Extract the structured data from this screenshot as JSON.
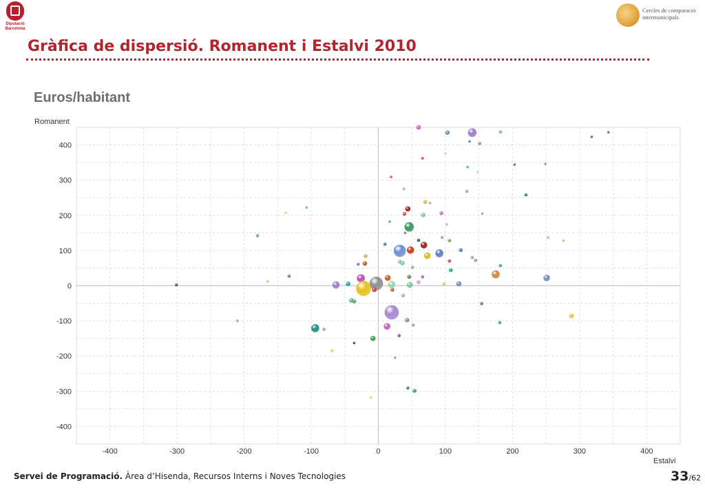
{
  "header": {
    "logo_left_text": "Diputació\nBarcelona",
    "logo_right_text": "Cercles de comparació intermunicipals",
    "title": "Gràfica de dispersió. Romanent i Estalvi 2010",
    "accent_color": "#b2242e"
  },
  "subtitle": "Euros/habitant",
  "chart_data": {
    "type": "scatter",
    "title": "",
    "xlabel": "Estalvi",
    "ylabel": "Romanent",
    "xlim": [
      -450,
      450
    ],
    "ylim": [
      -450,
      450
    ],
    "xticks": [
      -400,
      -300,
      -200,
      -100,
      0,
      100,
      200,
      300,
      400
    ],
    "yticks": [
      -400,
      -300,
      -200,
      -100,
      0,
      100,
      200,
      300,
      400
    ],
    "grid": true,
    "legend": "none",
    "points": [
      {
        "x": 60,
        "y": 450,
        "r": 3,
        "color": "#d05ec0"
      },
      {
        "x": 103,
        "y": 435,
        "r": 3,
        "color": "#6a8fc8"
      },
      {
        "x": 140,
        "y": 435,
        "r": 6,
        "color": "#9b7fc8"
      },
      {
        "x": 182,
        "y": 437,
        "r": 2,
        "color": "#68b8a8"
      },
      {
        "x": 343,
        "y": 436,
        "r": 1.5,
        "color": "#7b5fa8"
      },
      {
        "x": 318,
        "y": 423,
        "r": 1.5,
        "color": "#a05050"
      },
      {
        "x": 136,
        "y": 410,
        "r": 1.5,
        "color": "#5b7fd0"
      },
      {
        "x": 151,
        "y": 404,
        "r": 2,
        "color": "#6a8fc8"
      },
      {
        "x": 100,
        "y": 376,
        "r": 1.5,
        "color": "#cccccc"
      },
      {
        "x": 66,
        "y": 362,
        "r": 1.5,
        "color": "#c84040"
      },
      {
        "x": 203,
        "y": 344,
        "r": 1.5,
        "color": "#a05060"
      },
      {
        "x": 249,
        "y": 346,
        "r": 1.5,
        "color": "#d08090"
      },
      {
        "x": 133,
        "y": 337,
        "r": 1.5,
        "color": "#4aa0d0"
      },
      {
        "x": 148,
        "y": 323,
        "r": 1.5,
        "color": "#cccccc"
      },
      {
        "x": 19,
        "y": 309,
        "r": 1.5,
        "color": "#d05050"
      },
      {
        "x": 38,
        "y": 275,
        "r": 2,
        "color": "#a0c8b0"
      },
      {
        "x": 132,
        "y": 268,
        "r": 2,
        "color": "#a0a0a0"
      },
      {
        "x": 220,
        "y": 258,
        "r": 2,
        "color": "#3a8040"
      },
      {
        "x": 70,
        "y": 238,
        "r": 2.5,
        "color": "#e0b040"
      },
      {
        "x": 77,
        "y": 235,
        "r": 1.5,
        "color": "#a0a0a0"
      },
      {
        "x": -107,
        "y": 222,
        "r": 1.5,
        "color": "#68c0a8"
      },
      {
        "x": -138,
        "y": 207,
        "r": 1.5,
        "color": "#e0d080"
      },
      {
        "x": 44,
        "y": 218,
        "r": 3.5,
        "color": "#a02020"
      },
      {
        "x": 39,
        "y": 204,
        "r": 2.5,
        "color": "#d05050"
      },
      {
        "x": 67,
        "y": 201,
        "r": 3,
        "color": "#80c8a0"
      },
      {
        "x": 94,
        "y": 206,
        "r": 2.5,
        "color": "#d070c0"
      },
      {
        "x": 155,
        "y": 205,
        "r": 1.5,
        "color": "#a0a0a0"
      },
      {
        "x": 17,
        "y": 182,
        "r": 1.5,
        "color": "#50a0c0"
      },
      {
        "x": 46,
        "y": 167,
        "r": 6.5,
        "color": "#3a9860"
      },
      {
        "x": 102,
        "y": 174,
        "r": 1.5,
        "color": "#a0c8a0"
      },
      {
        "x": 40,
        "y": 150,
        "r": 1.5,
        "color": "#6080c0"
      },
      {
        "x": -180,
        "y": 142,
        "r": 2,
        "color": "#68a898"
      },
      {
        "x": 253,
        "y": 137,
        "r": 2,
        "color": "#a8c8e0"
      },
      {
        "x": 276,
        "y": 128,
        "r": 1.5,
        "color": "#d0c050"
      },
      {
        "x": 95,
        "y": 137,
        "r": 2,
        "color": "#c090d0"
      },
      {
        "x": 106,
        "y": 128,
        "r": 2,
        "color": "#80a040"
      },
      {
        "x": 60,
        "y": 129,
        "r": 2,
        "color": "#205080"
      },
      {
        "x": 68,
        "y": 115,
        "r": 4.5,
        "color": "#a02020"
      },
      {
        "x": 48,
        "y": 101,
        "r": 5,
        "color": "#c04020"
      },
      {
        "x": 32,
        "y": 99,
        "r": 8.5,
        "color": "#7090d0"
      },
      {
        "x": 10,
        "y": 118,
        "r": 2,
        "color": "#3a8090"
      },
      {
        "x": 123,
        "y": 101,
        "r": 2.5,
        "color": "#5080c0"
      },
      {
        "x": 91,
        "y": 92,
        "r": 5.5,
        "color": "#6080c0"
      },
      {
        "x": 73,
        "y": 85,
        "r": 4.5,
        "color": "#e0b830"
      },
      {
        "x": 140,
        "y": 80,
        "r": 2,
        "color": "#a0a0a0"
      },
      {
        "x": 145,
        "y": 72,
        "r": 2,
        "color": "#b080c0"
      },
      {
        "x": 106,
        "y": 70,
        "r": 2,
        "color": "#d04040"
      },
      {
        "x": 182,
        "y": 57,
        "r": 2,
        "color": "#30a0a0"
      },
      {
        "x": -19,
        "y": 84,
        "r": 2.5,
        "color": "#d0b040"
      },
      {
        "x": -20,
        "y": 63,
        "r": 3,
        "color": "#c06020"
      },
      {
        "x": -30,
        "y": 61,
        "r": 2,
        "color": "#8080c0"
      },
      {
        "x": 32,
        "y": 68,
        "r": 2.5,
        "color": "#a0c090"
      },
      {
        "x": 36,
        "y": 64,
        "r": 3,
        "color": "#80c0c0"
      },
      {
        "x": 51,
        "y": 52,
        "r": 2,
        "color": "#a0a0a0"
      },
      {
        "x": 108,
        "y": 44,
        "r": 2.5,
        "color": "#30a080"
      },
      {
        "x": 175,
        "y": 32,
        "r": 5.5,
        "color": "#d08840"
      },
      {
        "x": 251,
        "y": 22,
        "r": 4.5,
        "color": "#7090c0"
      },
      {
        "x": -26,
        "y": 21,
        "r": 5.5,
        "color": "#c050b0"
      },
      {
        "x": 14,
        "y": 22,
        "r": 4,
        "color": "#c06020"
      },
      {
        "x": 46,
        "y": 25,
        "r": 2.5,
        "color": "#6a8040"
      },
      {
        "x": 66,
        "y": 25,
        "r": 2,
        "color": "#c060a0"
      },
      {
        "x": -133,
        "y": 27,
        "r": 2,
        "color": "#b06060"
      },
      {
        "x": -165,
        "y": 12,
        "r": 1.5,
        "color": "#d0c050"
      },
      {
        "x": -63,
        "y": 2,
        "r": 5,
        "color": "#a080c8"
      },
      {
        "x": -45,
        "y": 5,
        "r": 3,
        "color": "#20a0b0"
      },
      {
        "x": -3,
        "y": 6,
        "r": 9.5,
        "color": "#909090"
      },
      {
        "x": 20,
        "y": 3,
        "r": 5,
        "color": "#a0d0b0"
      },
      {
        "x": 47,
        "y": 2,
        "r": 4,
        "color": "#80c0a0"
      },
      {
        "x": 60,
        "y": 10,
        "r": 2.5,
        "color": "#c0a0d0"
      },
      {
        "x": 98,
        "y": 5,
        "r": 2,
        "color": "#e0c060"
      },
      {
        "x": 120,
        "y": 5,
        "r": 3.5,
        "color": "#7090c0"
      },
      {
        "x": -22,
        "y": -8,
        "r": 10.5,
        "color": "#e8c020"
      },
      {
        "x": -6,
        "y": -12,
        "r": 3,
        "color": "#c04040"
      },
      {
        "x": 21,
        "y": -12,
        "r": 2.5,
        "color": "#c06020"
      },
      {
        "x": 37,
        "y": -28,
        "r": 2.5,
        "color": "#a0c0a0"
      },
      {
        "x": -40,
        "y": -42,
        "r": 3,
        "color": "#6aa8a0"
      },
      {
        "x": -36,
        "y": -45,
        "r": 2.5,
        "color": "#5aa060"
      },
      {
        "x": 154,
        "y": -51,
        "r": 2,
        "color": "#3a80a0"
      },
      {
        "x": 20,
        "y": -76,
        "r": 10,
        "color": "#a888d0"
      },
      {
        "x": 43,
        "y": -98,
        "r": 3,
        "color": "#909090"
      },
      {
        "x": 181,
        "y": -105,
        "r": 2,
        "color": "#4098a0"
      },
      {
        "x": 288,
        "y": -86,
        "r": 3,
        "color": "#e0c040"
      },
      {
        "x": -94,
        "y": -121,
        "r": 5.5,
        "color": "#209080"
      },
      {
        "x": -81,
        "y": -124,
        "r": 2,
        "color": "#90a0a0"
      },
      {
        "x": 13,
        "y": -116,
        "r": 4.5,
        "color": "#c060c0"
      },
      {
        "x": 52,
        "y": -112,
        "r": 2,
        "color": "#a0a0a0"
      },
      {
        "x": 31,
        "y": -142,
        "r": 2,
        "color": "#6060b0"
      },
      {
        "x": -8,
        "y": -150,
        "r": 3.5,
        "color": "#40a040"
      },
      {
        "x": -36,
        "y": -163,
        "r": 1.5,
        "color": "#3a4060"
      },
      {
        "x": -69,
        "y": -185,
        "r": 2,
        "color": "#e0d060"
      },
      {
        "x": 25,
        "y": -205,
        "r": 1.5,
        "color": "#a0a0a0"
      },
      {
        "x": 44,
        "y": -291,
        "r": 2,
        "color": "#408060"
      },
      {
        "x": 54,
        "y": -299,
        "r": 2.5,
        "color": "#40a060"
      },
      {
        "x": -11,
        "y": -318,
        "r": 1.5,
        "color": "#e0d060"
      },
      {
        "x": -301,
        "y": 2,
        "r": 2,
        "color": "#4a5a8a"
      },
      {
        "x": -210,
        "y": -100,
        "r": 1.5,
        "color": "#a0a0a0"
      }
    ]
  },
  "footer": {
    "dept_bold": "Servei de Programació.",
    "dept_rest": " Àrea d’Hisenda, Recursos Interns i Noves Tecnologies",
    "page_current": "33",
    "page_total": "/62"
  }
}
